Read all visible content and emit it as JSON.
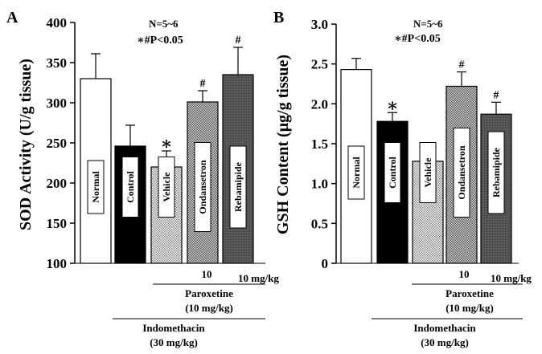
{
  "chart_data": [
    {
      "type": "bar",
      "panel_label": "A",
      "annotation_n": "N=5~6",
      "annotation_p": "∗#P<0.05",
      "ylabel": "SOD Activity (U/g tissue)",
      "ylim": [
        100,
        400
      ],
      "yticks": [
        "100",
        "150",
        "200",
        "250",
        "300",
        "350",
        "400"
      ],
      "categories": [
        "Normal",
        "Control",
        "Vehicle",
        "Ondansetron",
        "Rebamipide"
      ],
      "values": [
        330,
        246,
        220,
        301,
        335
      ],
      "errors": [
        31,
        26,
        20,
        14,
        34
      ],
      "sig_marks": [
        "",
        "",
        "∗",
        "#",
        "#"
      ],
      "dose_labels": [
        "",
        "",
        "",
        "10",
        "10 mg/kg"
      ],
      "paroxetine_label": "Paroxetine",
      "paroxetine_dose": "(10 mg/kg)",
      "indomethacin_label": "Indomethacin",
      "indomethacin_dose": "(30 mg/kg)"
    },
    {
      "type": "bar",
      "panel_label": "B",
      "annotation_n": "N=5~6",
      "annotation_p": "∗#P<0.05",
      "ylabel": "GSH Content (μg/g tissue)",
      "ylim": [
        0,
        3.0
      ],
      "yticks": [
        "0",
        "0.5",
        "1.0",
        "1.5",
        "2.0",
        "2.5",
        "3.0"
      ],
      "categories": [
        "Normal",
        "Control",
        "Vehicle",
        "Ondansetron",
        "Rebamipide"
      ],
      "values": [
        2.43,
        1.78,
        1.28,
        2.22,
        1.87
      ],
      "errors": [
        0.14,
        0.11,
        0.08,
        0.18,
        0.15
      ],
      "sig_marks": [
        "",
        "∗",
        "∗",
        "#",
        "#"
      ],
      "dose_labels": [
        "",
        "",
        "",
        "10",
        "10 mg/kg"
      ],
      "paroxetine_label": "Paroxetine",
      "paroxetine_dose": "(10 mg/kg)",
      "indomethacin_label": "Indomethacin",
      "indomethacin_dose": "(30 mg/kg)"
    }
  ]
}
